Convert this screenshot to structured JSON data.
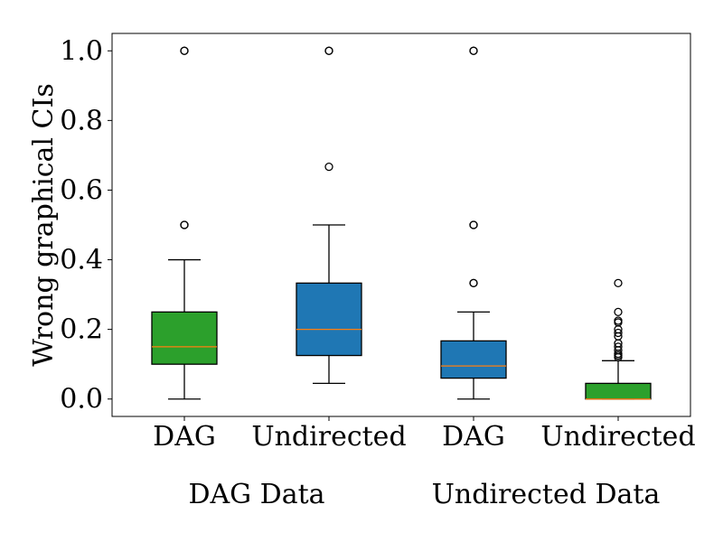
{
  "chart_data": {
    "type": "box",
    "ylabel": "Wrong graphical CIs",
    "ylim": [
      -0.05,
      1.05
    ],
    "yticks": [
      "0.0",
      "0.2",
      "0.4",
      "0.6",
      "0.8",
      "1.0"
    ],
    "grid": false,
    "categories": [
      "DAG",
      "Undirected",
      "DAG",
      "Undirected"
    ],
    "groups": [
      {
        "label": "DAG Data",
        "members": [
          0,
          1
        ]
      },
      {
        "label": "Undirected Data",
        "members": [
          2,
          3
        ]
      }
    ],
    "boxes": [
      {
        "category": "DAG",
        "group": "DAG Data",
        "color": "#2ca02c",
        "whisker_low": 0.0,
        "q1": 0.1,
        "median": 0.15,
        "q3": 0.25,
        "whisker_high": 0.4,
        "outliers": [
          0.5,
          0.5,
          1.0,
          1.0
        ]
      },
      {
        "category": "Undirected",
        "group": "DAG Data",
        "color": "#1f77b4",
        "whisker_low": 0.045,
        "q1": 0.125,
        "median": 0.2,
        "q3": 0.333,
        "whisker_high": 0.5,
        "outliers": [
          0.667,
          1.0,
          1.0
        ]
      },
      {
        "category": "DAG",
        "group": "Undirected Data",
        "color": "#1f77b4",
        "whisker_low": 0.0,
        "q1": 0.06,
        "median": 0.095,
        "q3": 0.167,
        "whisker_high": 0.25,
        "outliers": [
          0.333,
          0.333,
          0.5,
          0.5,
          1.0,
          1.0
        ]
      },
      {
        "category": "Undirected",
        "group": "Undirected Data",
        "color": "#2ca02c",
        "whisker_low": 0.0,
        "q1": 0.0,
        "median": 0.0,
        "q3": 0.045,
        "whisker_high": 0.11,
        "outliers": [
          0.12,
          0.125,
          0.13,
          0.14,
          0.15,
          0.16,
          0.18,
          0.19,
          0.2,
          0.22,
          0.225,
          0.25,
          0.333
        ]
      }
    ],
    "colors": {
      "median": "#ff7f0e",
      "edge": "#000000"
    }
  }
}
